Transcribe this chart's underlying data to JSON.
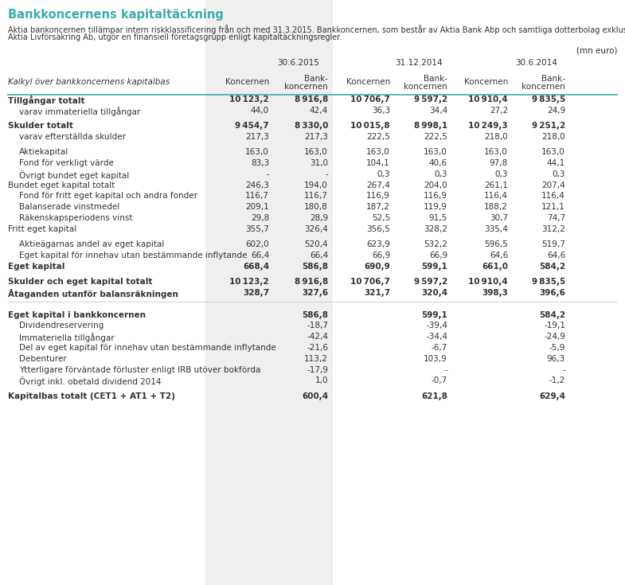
{
  "title": "Bankkoncernens kapitaltäckning",
  "intro_line1": "Aktia bankoncernen tillämpar intern riskklassificering från och med 31.3.2015. Bankkoncernen, som består av Aktia Bank Abp och samtliga dotterbolag exklusive",
  "intro_line2": "Aktia Livförsäkring Ab, utgör en finansiell företagsgrupp enligt kapitaltäckningsregler.",
  "unit_label": "(mn euro)",
  "date_headers": [
    "30.6.2015",
    "31.12.2014",
    "30.6.2014"
  ],
  "row_header_label": "Kalkyl över bankkoncernens kapitalbas",
  "title_color": "#3aafa9",
  "shade_color": "#efefef",
  "header_line_color": "#3aafa9",
  "text_color": "#333333",
  "background_color": "#ffffff",
  "rows": [
    {
      "label": "Tillgångar totalt",
      "bold": true,
      "indent": 0,
      "values": [
        "10 123,2",
        "8 916,8",
        "10 706,7",
        "9 597,2",
        "10 910,4",
        "9 835,5"
      ]
    },
    {
      "label": "varav immateriella tillgångar",
      "bold": false,
      "indent": 1,
      "values": [
        "44,0",
        "42,4",
        "36,3",
        "34,4",
        "27,2",
        "24,9"
      ]
    },
    {
      "label": "",
      "bold": false,
      "indent": 0,
      "values": [
        "",
        "",
        "",
        "",
        "",
        ""
      ],
      "spacer": true
    },
    {
      "label": "Skulder totalt",
      "bold": true,
      "indent": 0,
      "values": [
        "9 454,7",
        "8 330,0",
        "10 015,8",
        "8 998,1",
        "10 249,3",
        "9 251,2"
      ]
    },
    {
      "label": "varav efterställda skulder",
      "bold": false,
      "indent": 1,
      "values": [
        "217,3",
        "217,3",
        "222,5",
        "222,5",
        "218,0",
        "218,0"
      ]
    },
    {
      "label": "",
      "bold": false,
      "indent": 0,
      "values": [
        "",
        "",
        "",
        "",
        "",
        ""
      ],
      "spacer": true
    },
    {
      "label": "Aktiekapital",
      "bold": false,
      "indent": 1,
      "values": [
        "163,0",
        "163,0",
        "163,0",
        "163,0",
        "163,0",
        "163,0"
      ]
    },
    {
      "label": "Fond för verkligt värde",
      "bold": false,
      "indent": 1,
      "values": [
        "83,3",
        "31,0",
        "104,1",
        "40,6",
        "97,8",
        "44,1"
      ]
    },
    {
      "label": "Övrigt bundet eget kapital",
      "bold": false,
      "indent": 1,
      "values": [
        "-",
        "-",
        "0,3",
        "0,3",
        "0,3",
        "0,3"
      ]
    },
    {
      "label": "Bundet eget kapital totalt",
      "bold": false,
      "indent": 0,
      "values": [
        "246,3",
        "194,0",
        "267,4",
        "204,0",
        "261,1",
        "207,4"
      ]
    },
    {
      "label": "Fond för fritt eget kapital och andra fonder",
      "bold": false,
      "indent": 1,
      "values": [
        "116,7",
        "116,7",
        "116,9",
        "116,9",
        "116,4",
        "116,4"
      ]
    },
    {
      "label": "Balanserade vinstmedel",
      "bold": false,
      "indent": 1,
      "values": [
        "209,1",
        "180,8",
        "187,2",
        "119,9",
        "188,2",
        "121,1"
      ]
    },
    {
      "label": "Räkenskapsperiodens vinst",
      "bold": false,
      "indent": 1,
      "values": [
        "29,8",
        "28,9",
        "52,5",
        "91,5",
        "30,7",
        "74,7"
      ]
    },
    {
      "label": "Fritt eget kapital",
      "bold": false,
      "indent": 0,
      "values": [
        "355,7",
        "326,4",
        "356,5",
        "328,2",
        "335,4",
        "312,2"
      ]
    },
    {
      "label": "",
      "bold": false,
      "indent": 0,
      "values": [
        "",
        "",
        "",
        "",
        "",
        ""
      ],
      "spacer": true
    },
    {
      "label": "Aktieägarnas andel av eget kapital",
      "bold": false,
      "indent": 1,
      "values": [
        "602,0",
        "520,4",
        "623,9",
        "532,2",
        "596,5",
        "519,7"
      ]
    },
    {
      "label": "Eget kapital för innehav utan bestämmande inflytande",
      "bold": false,
      "indent": 1,
      "values": [
        "66,4",
        "66,4",
        "66,9",
        "66,9",
        "64,6",
        "64,6"
      ]
    },
    {
      "label": "Eget kapital",
      "bold": true,
      "indent": 0,
      "values": [
        "668,4",
        "586,8",
        "690,9",
        "599,1",
        "661,0",
        "584,2"
      ]
    },
    {
      "label": "",
      "bold": false,
      "indent": 0,
      "values": [
        "",
        "",
        "",
        "",
        "",
        ""
      ],
      "spacer": true
    },
    {
      "label": "Skulder och eget kapital totalt",
      "bold": true,
      "indent": 0,
      "values": [
        "10 123,2",
        "8 916,8",
        "10 706,7",
        "9 597,2",
        "10 910,4",
        "9 835,5"
      ]
    },
    {
      "label": "Åtaganden utanför balansräkningen",
      "bold": true,
      "indent": 0,
      "values": [
        "328,7",
        "327,6",
        "321,7",
        "320,4",
        "398,3",
        "396,6"
      ]
    }
  ],
  "section2_rows": [
    {
      "label": "Eget kapital i bankkoncernen",
      "bold": true,
      "indent": 0,
      "values": [
        "",
        "586,8",
        "",
        "599,1",
        "",
        "584,2"
      ]
    },
    {
      "label": "Dividendreservering",
      "bold": false,
      "indent": 1,
      "values": [
        "",
        "-18,7",
        "",
        "-39,4",
        "",
        "-19,1"
      ]
    },
    {
      "label": "Immateriella tillgångar",
      "bold": false,
      "indent": 1,
      "values": [
        "",
        "-42,4",
        "",
        "-34,4",
        "",
        "-24,9"
      ]
    },
    {
      "label": "Del av eget kapital för innehav utan bestämmande inflytande",
      "bold": false,
      "indent": 1,
      "values": [
        "",
        "-21,6",
        "",
        "-6,7",
        "",
        "-5,9"
      ]
    },
    {
      "label": "Debenturer",
      "bold": false,
      "indent": 1,
      "values": [
        "",
        "113,2",
        "",
        "103,9",
        "",
        "96,3"
      ]
    },
    {
      "label": "Ytterligare förväntade förluster enligt IRB utöver bokförda",
      "bold": false,
      "indent": 1,
      "values": [
        "",
        "-17,9",
        "",
        "-",
        "",
        "-"
      ]
    },
    {
      "label": "Övrigt inkl. obetald dividend 2014",
      "bold": false,
      "indent": 1,
      "values": [
        "",
        "1,0",
        "",
        "-0,7",
        "",
        "-1,2"
      ]
    },
    {
      "label": "",
      "bold": false,
      "indent": 0,
      "values": [
        "",
        "",
        "",
        "",
        "",
        ""
      ],
      "spacer": true
    },
    {
      "label": "Kapitalbas totalt (CET1 + AT1 + T2)",
      "bold": true,
      "indent": 0,
      "values": [
        "",
        "600,4",
        "",
        "621,8",
        "",
        "629,4"
      ]
    }
  ]
}
